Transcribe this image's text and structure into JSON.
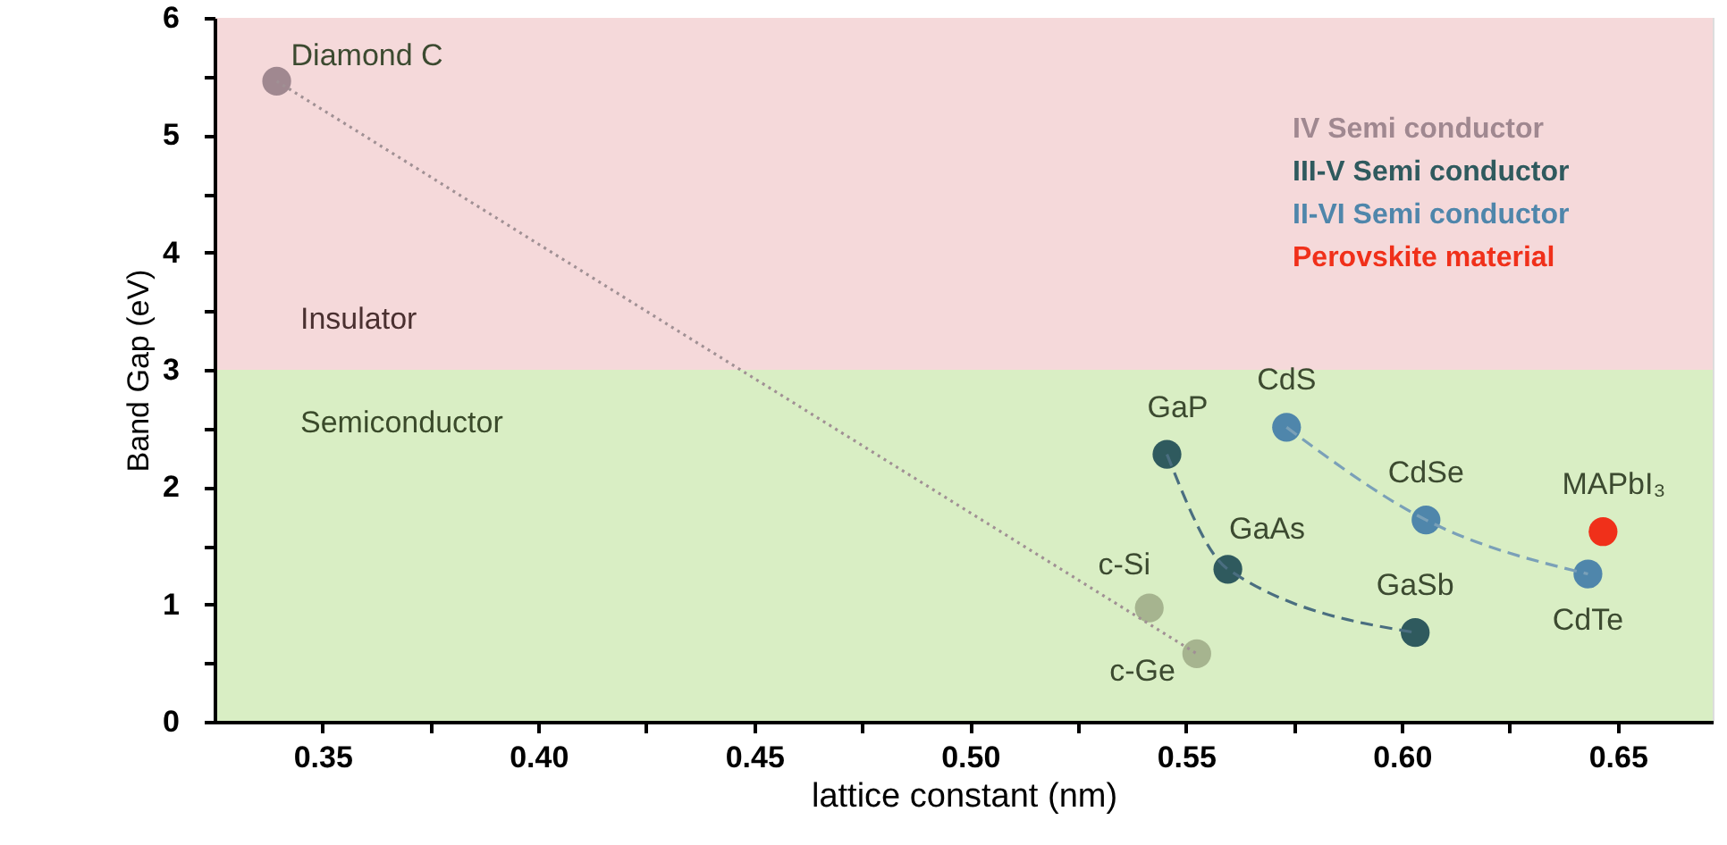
{
  "chart_data": {
    "type": "scatter",
    "xlabel": "lattice constant (nm)",
    "ylabel": "Band Gap (eV)",
    "xlim": [
      0.325,
      0.672
    ],
    "ylim": [
      0,
      6
    ],
    "xticks": [
      0.35,
      {
        "value": 0.375,
        "label": null
      },
      {
        "value": 0.4,
        "label": "0.40"
      },
      {
        "value": 0.425,
        "label": null
      },
      0.45,
      {
        "value": 0.475,
        "label": null
      },
      {
        "value": 0.5,
        "label": "0.50"
      },
      {
        "value": 0.525,
        "label": null
      },
      0.55,
      {
        "value": 0.575,
        "label": null
      },
      {
        "value": 0.6,
        "label": "0.60"
      },
      {
        "value": 0.625,
        "label": null
      },
      0.65
    ],
    "yticks": [
      0,
      {
        "value": 0.5,
        "label": null
      },
      1,
      {
        "value": 1.5,
        "label": null
      },
      2,
      {
        "value": 2.5,
        "label": null
      },
      3,
      {
        "value": 3.5,
        "label": null
      },
      4,
      {
        "value": 4.5,
        "label": null
      },
      5,
      {
        "value": 5.5,
        "label": null
      },
      6
    ],
    "legend": "top right",
    "marker": "circle",
    "bands": [
      {
        "axis": "y",
        "from": 0,
        "to": 3,
        "label": "Semiconductor",
        "color": "#d9eec4"
      },
      {
        "axis": "y",
        "from": 3,
        "to": 6,
        "label": "Insulator",
        "color": "#f5d9da"
      }
    ],
    "series": [
      {
        "type": "line",
        "marker": "none",
        "color": "#a09094",
        "line_style": "dotted",
        "x": [
          0.3394,
          0.5525
        ],
        "values": [
          5.46,
          0.58
        ]
      },
      {
        "type": "line",
        "marker": "none",
        "color": "#4a6e80",
        "line_style": "dashed",
        "x": [
          0.5456,
          0.5597,
          0.6031
        ],
        "values": [
          2.28,
          1.3,
          0.76
        ]
      },
      {
        "type": "line",
        "marker": "none",
        "color": "#7aa0b8",
        "line_style": "dashed",
        "x": [
          0.5733,
          0.6056,
          0.6431
        ],
        "values": [
          2.51,
          1.72,
          1.26
        ]
      },
      {
        "name": "IV Semi conductor",
        "color": "#a08890",
        "colors": [
          "#a08890",
          "#a6b48f",
          "#a6b48f"
        ],
        "x": [
          0.3394,
          0.5415,
          0.5525
        ],
        "values": [
          5.46,
          0.97,
          0.58
        ]
      },
      {
        "name": "III-V Semi conductor",
        "color": "#2f5a5e",
        "x": [
          0.5456,
          0.5597,
          0.6031
        ],
        "values": [
          2.28,
          1.3,
          0.76
        ]
      },
      {
        "name": "II-VI Semi conductor",
        "color": "#4f86ab",
        "x": [
          0.5733,
          0.6056,
          0.6431
        ],
        "values": [
          2.51,
          1.72,
          1.26
        ]
      },
      {
        "name": "Perovskite material",
        "color": "#f0301a",
        "x": [
          0.6466
        ],
        "values": [
          1.62
        ]
      }
    ],
    "annotations": [
      {
        "text": "Diamond C",
        "x": 0.3394,
        "y": 5.46
      },
      {
        "text": "c-Si",
        "x": 0.5415,
        "y": 0.97
      },
      {
        "text": "c-Ge",
        "x": 0.5525,
        "y": 0.58
      },
      {
        "text": "GaP",
        "x": 0.5456,
        "y": 2.28
      },
      {
        "text": "GaAs",
        "x": 0.5597,
        "y": 1.3
      },
      {
        "text": "GaSb",
        "x": 0.6031,
        "y": 0.76
      },
      {
        "text": "CdS",
        "x": 0.5733,
        "y": 2.51
      },
      {
        "text": "CdSe",
        "x": 0.6056,
        "y": 1.72
      },
      {
        "text": "CdTe",
        "x": 0.6431,
        "y": 1.26
      },
      {
        "text": "MAPbI₃",
        "x": 0.6466,
        "y": 1.62
      }
    ]
  }
}
